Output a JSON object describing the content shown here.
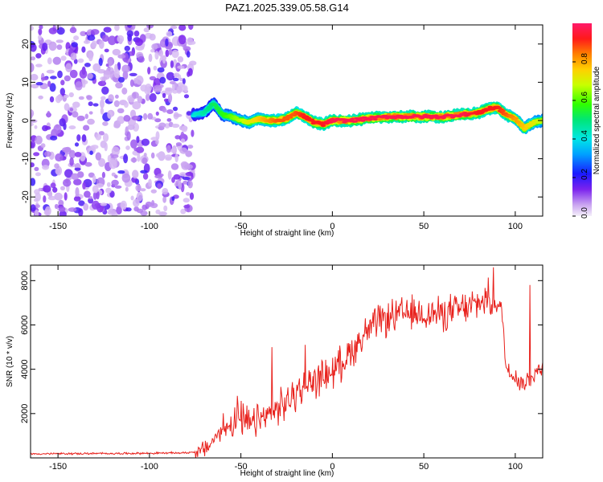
{
  "title": "PAZ1.2025.339.05.58.G14",
  "chart_data": [
    {
      "type": "heatmap",
      "xlabel": "Height of straight line (km)",
      "ylabel": "Frequency (Hz)",
      "xlim": [
        -165,
        115
      ],
      "ylim": [
        -25,
        25
      ],
      "xticks": [
        -150,
        -100,
        -50,
        0,
        50,
        100
      ],
      "yticks": [
        -20,
        -10,
        0,
        10,
        20
      ],
      "colorbar": {
        "label": "Normalized spectral amplitude",
        "range": [
          0,
          1
        ],
        "ticks": [
          0.0,
          0.2,
          0.4,
          0.6,
          0.8
        ]
      },
      "noise_region": {
        "x": [
          -165,
          -76
        ],
        "description_level": "low amplitude, scattered"
      },
      "signal_ridge": {
        "x": [
          -76,
          -70,
          -65,
          -60,
          -55,
          -50,
          -45,
          -40,
          -35,
          -30,
          -25,
          -20,
          -15,
          -10,
          -5,
          0,
          10,
          20,
          30,
          40,
          50,
          60,
          70,
          80,
          85,
          90,
          95,
          100,
          105,
          110,
          115
        ],
        "frequency": [
          1.5,
          2.0,
          4.5,
          1.5,
          1.0,
          0.0,
          -0.5,
          0.5,
          0.0,
          0.0,
          0.5,
          2.0,
          1.0,
          -0.5,
          -1.0,
          0.0,
          0.0,
          0.5,
          1.0,
          1.0,
          1.0,
          1.0,
          1.5,
          2.0,
          3.0,
          3.5,
          1.5,
          0.5,
          -2.0,
          -0.5,
          0.0
        ],
        "amplitude": [
          0.4,
          0.45,
          0.5,
          0.55,
          0.6,
          0.65,
          0.7,
          0.75,
          0.8,
          0.85,
          0.85,
          0.85,
          0.9,
          0.9,
          0.9,
          0.95,
          0.95,
          0.95,
          0.95,
          0.95,
          0.95,
          0.95,
          0.95,
          0.9,
          0.9,
          0.9,
          0.85,
          0.8,
          0.75,
          0.7,
          0.65
        ]
      }
    },
    {
      "type": "line",
      "xlabel": "Height of straight line (km)",
      "ylabel": "SNR (10 * v/v)",
      "xlim": [
        -165,
        115
      ],
      "ylim": [
        0,
        8700
      ],
      "xticks": [
        -150,
        -100,
        -50,
        0,
        50,
        100
      ],
      "yticks": [
        2000,
        4000,
        6000,
        8000
      ],
      "color": "#e8211c",
      "series": [
        {
          "name": "SNR",
          "x": [
            -165,
            -150,
            -120,
            -100,
            -80,
            -72,
            -68,
            -64,
            -60,
            -55,
            -50,
            -45,
            -40,
            -35,
            -30,
            -25,
            -20,
            -15,
            -10,
            -5,
            0,
            5,
            10,
            15,
            20,
            25,
            30,
            35,
            40,
            45,
            50,
            55,
            60,
            65,
            70,
            75,
            80,
            85,
            90,
            93,
            95,
            100,
            105,
            110,
            115
          ],
          "y": [
            180,
            190,
            200,
            210,
            230,
            300,
            500,
            900,
            1300,
            1600,
            1700,
            1500,
            1700,
            1900,
            2200,
            2500,
            2900,
            3200,
            3500,
            3700,
            3900,
            4300,
            4800,
            5300,
            5800,
            6100,
            6300,
            6400,
            6500,
            6500,
            6500,
            6500,
            6500,
            6600,
            6700,
            6800,
            7000,
            7200,
            7000,
            6500,
            4000,
            3700,
            3300,
            3800,
            4100
          ],
          "notable_peaks": [
            {
              "x": -52,
              "y": 2800
            },
            {
              "x": -33,
              "y": 5000
            },
            {
              "x": -15,
              "y": 5100
            },
            {
              "x": 88,
              "y": 8600
            },
            {
              "x": 108,
              "y": 7800
            }
          ]
        }
      ]
    }
  ]
}
